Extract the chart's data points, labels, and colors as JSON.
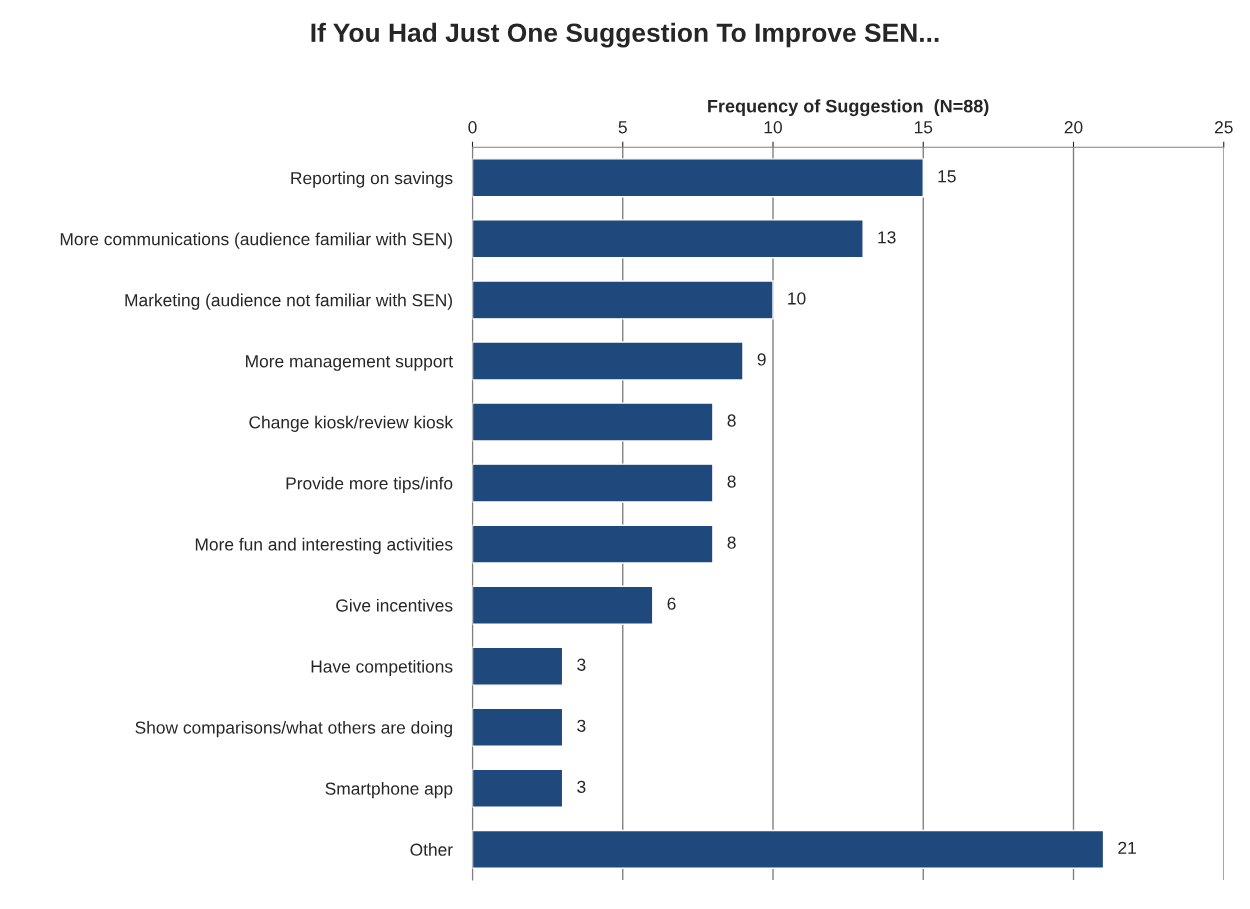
{
  "chart_data": {
    "type": "bar",
    "orientation": "horizontal",
    "title": "If You Had Just One Suggestion To Improve SEN...",
    "xlabel": "Frequency of Suggestion  (N=88)",
    "categories": [
      "Reporting on savings",
      "More communications (audience familiar with SEN)",
      "Marketing (audience not familiar with SEN)",
      "More management support",
      "Change kiosk/review kiosk",
      "Provide more tips/info",
      "More fun and interesting activities",
      "Give incentives",
      "Have competitions",
      "Show comparisons/what others are doing",
      "Smartphone app",
      "Other"
    ],
    "values": [
      15,
      13,
      10,
      9,
      8,
      8,
      8,
      6,
      3,
      3,
      3,
      21
    ],
    "color": "#1f497d",
    "xlim": [
      0,
      25
    ],
    "xticks": [
      0,
      5,
      10,
      15,
      20,
      25
    ],
    "grid": "x",
    "data_labels": true
  }
}
